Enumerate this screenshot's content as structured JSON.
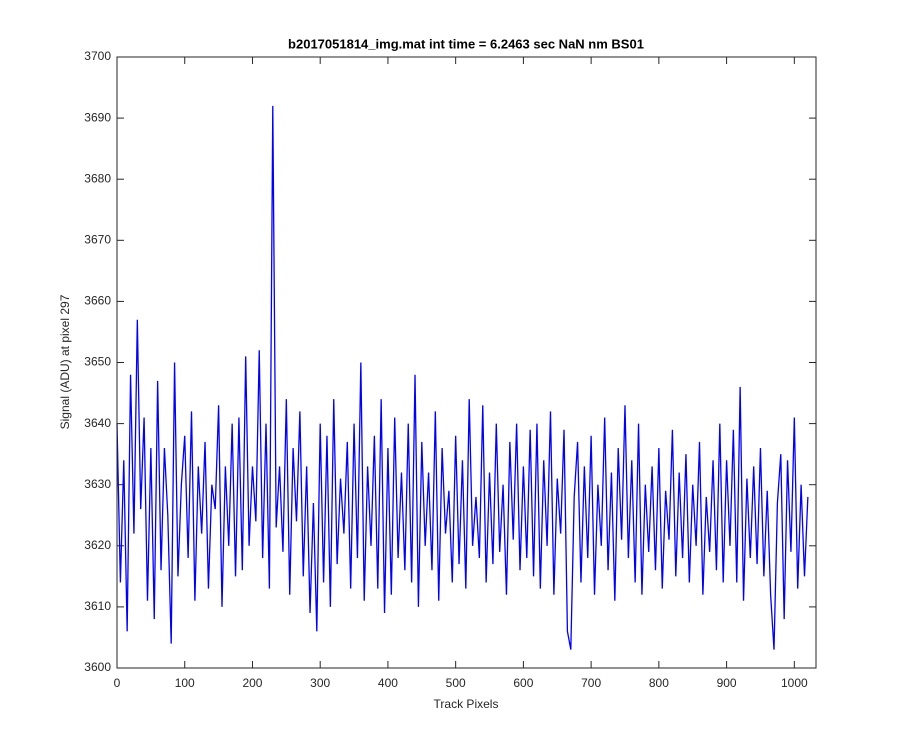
{
  "chart_data": {
    "type": "line",
    "title": "b2017051814_img.mat int time = 6.2463 sec  NaN nm BS01",
    "x_label": "Track Pixels",
    "y_label": "Signal (ADU) at pixel 297",
    "xlim": [
      0,
      1032
    ],
    "ylim": [
      3600,
      3700
    ],
    "xticks": [
      0,
      100,
      200,
      300,
      400,
      500,
      600,
      700,
      800,
      900,
      1000
    ],
    "yticks": [
      3600,
      3610,
      3620,
      3630,
      3640,
      3650,
      3660,
      3670,
      3680,
      3690,
      3700
    ],
    "grid": false,
    "x": [
      0,
      5,
      10,
      15,
      20,
      25,
      30,
      35,
      40,
      45,
      50,
      55,
      60,
      65,
      70,
      75,
      80,
      85,
      90,
      95,
      100,
      105,
      110,
      115,
      120,
      125,
      130,
      135,
      140,
      145,
      150,
      155,
      160,
      165,
      170,
      175,
      180,
      185,
      190,
      195,
      200,
      205,
      210,
      215,
      220,
      225,
      230,
      235,
      240,
      245,
      250,
      255,
      260,
      265,
      270,
      275,
      280,
      285,
      290,
      295,
      300,
      305,
      310,
      315,
      320,
      325,
      330,
      335,
      340,
      345,
      350,
      355,
      360,
      365,
      370,
      375,
      380,
      385,
      390,
      395,
      400,
      405,
      410,
      415,
      420,
      425,
      430,
      435,
      440,
      445,
      450,
      455,
      460,
      465,
      470,
      475,
      480,
      485,
      490,
      495,
      500,
      505,
      510,
      515,
      520,
      525,
      530,
      535,
      540,
      545,
      550,
      555,
      560,
      565,
      570,
      575,
      580,
      585,
      590,
      595,
      600,
      605,
      610,
      615,
      620,
      625,
      630,
      635,
      640,
      645,
      650,
      655,
      660,
      665,
      670,
      675,
      680,
      685,
      690,
      695,
      700,
      705,
      710,
      715,
      720,
      725,
      730,
      735,
      740,
      745,
      750,
      755,
      760,
      765,
      770,
      775,
      780,
      785,
      790,
      795,
      800,
      805,
      810,
      815,
      820,
      825,
      830,
      835,
      840,
      845,
      850,
      855,
      860,
      865,
      870,
      875,
      880,
      885,
      890,
      895,
      900,
      905,
      910,
      915,
      920,
      925,
      930,
      935,
      940,
      945,
      950,
      955,
      960,
      965,
      970,
      975,
      980,
      985,
      990,
      995,
      1000,
      1005,
      1010,
      1015,
      1020
    ],
    "series": [
      {
        "name": "Signal",
        "color": "#0000ff",
        "values": [
          3640,
          3614,
          3634,
          3606,
          3648,
          3622,
          3657,
          3626,
          3641,
          3611,
          3636,
          3608,
          3647,
          3616,
          3636,
          3625,
          3604,
          3650,
          3615,
          3630,
          3638,
          3618,
          3642,
          3611,
          3633,
          3622,
          3637,
          3613,
          3630,
          3626,
          3643,
          3610,
          3633,
          3620,
          3640,
          3615,
          3641,
          3616,
          3651,
          3620,
          3633,
          3624,
          3652,
          3618,
          3640,
          3613,
          3692,
          3623,
          3633,
          3619,
          3644,
          3612,
          3636,
          3624,
          3642,
          3615,
          3633,
          3609,
          3627,
          3606,
          3640,
          3614,
          3638,
          3610,
          3644,
          3617,
          3631,
          3622,
          3637,
          3613,
          3640,
          3618,
          3650,
          3611,
          3633,
          3620,
          3638,
          3613,
          3644,
          3609,
          3636,
          3612,
          3641,
          3618,
          3632,
          3616,
          3640,
          3614,
          3648,
          3610,
          3637,
          3620,
          3632,
          3616,
          3642,
          3611,
          3636,
          3622,
          3629,
          3614,
          3638,
          3617,
          3634,
          3613,
          3644,
          3620,
          3628,
          3618,
          3643,
          3614,
          3632,
          3617,
          3640,
          3619,
          3630,
          3612,
          3637,
          3621,
          3640,
          3616,
          3633,
          3618,
          3639,
          3615,
          3640,
          3613,
          3634,
          3620,
          3642,
          3612,
          3631,
          3622,
          3639,
          3606,
          3603,
          3628,
          3637,
          3614,
          3633,
          3618,
          3638,
          3612,
          3630,
          3620,
          3641,
          3616,
          3632,
          3611,
          3636,
          3621,
          3643,
          3618,
          3634,
          3614,
          3640,
          3612,
          3630,
          3619,
          3633,
          3616,
          3636,
          3613,
          3629,
          3621,
          3639,
          3615,
          3632,
          3618,
          3635,
          3614,
          3630,
          3620,
          3637,
          3612,
          3628,
          3619,
          3634,
          3616,
          3640,
          3614,
          3634,
          3620,
          3639,
          3614,
          3646,
          3611,
          3631,
          3618,
          3633,
          3617,
          3636,
          3615,
          3629,
          3612,
          3603,
          3627,
          3635,
          3608,
          3634,
          3619,
          3641,
          3613,
          3630,
          3615,
          3628
        ]
      }
    ]
  }
}
